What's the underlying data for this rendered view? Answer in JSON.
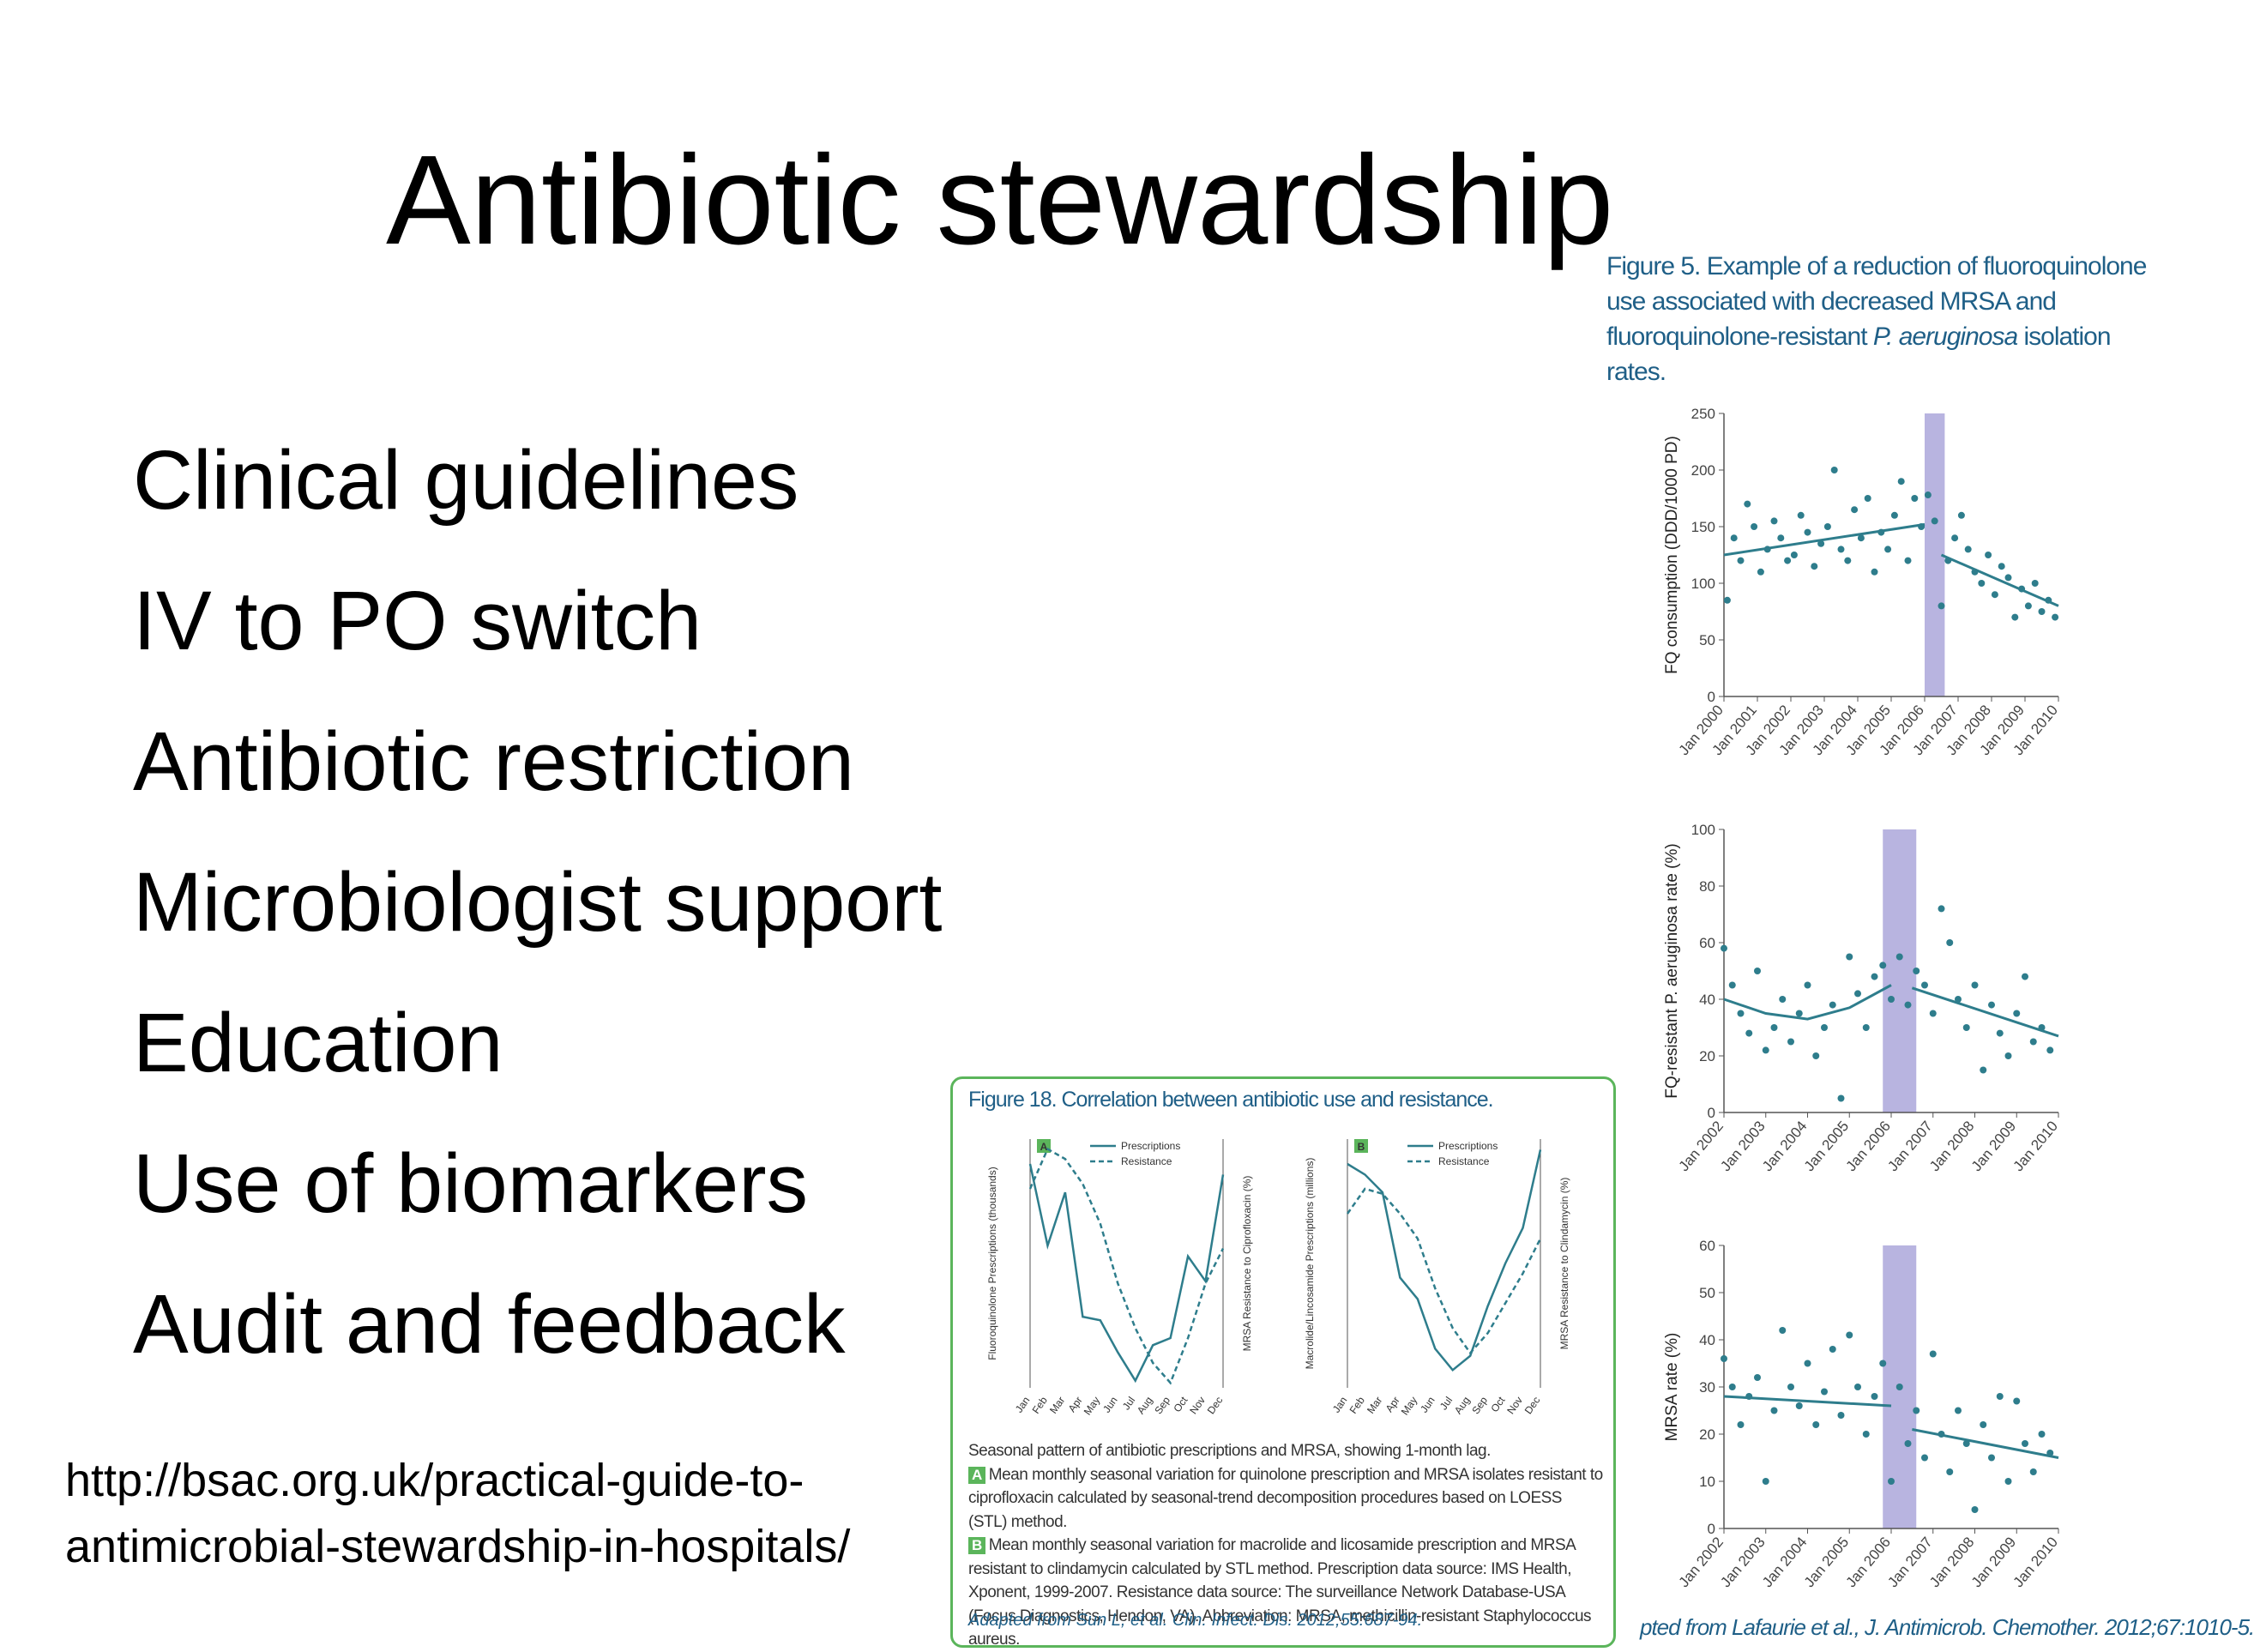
{
  "slide": {
    "title": "Antibiotic stewardship",
    "bullets": [
      "Clinical guidelines",
      "IV to PO switch",
      "Antibiotic restriction",
      "Microbiologist support",
      "Education",
      "Use of biomarkers",
      "Audit and feedback"
    ],
    "url": "http://bsac.org.uk/practical-guide-to-antimicrobial-stewardship-in-hospitals/"
  },
  "figure5": {
    "caption_part1": "Figure 5. Example of a reduction of fluoroquinolone use associated with decreased MRSA and fluoroquinolone-resistant ",
    "caption_italic": "P. aeruginosa",
    "caption_part2": " isolation rates.",
    "footer": "pted from Lafaurie et al., J. Antimicrob. Chemother. 2012;67:1010-5.",
    "colors": {
      "series": "#2e7d8c",
      "band": "#b8b4e0"
    }
  },
  "chart_data": [
    {
      "type": "scatter",
      "ylabel": "FQ consumption (DDD/1000 PD)",
      "ylim": [
        0,
        250
      ],
      "yticks": [
        0,
        50,
        100,
        150,
        200,
        250
      ],
      "xticks": [
        "Jan 2000",
        "Jan 2001",
        "Jan 2002",
        "Jan 2003",
        "Jan 2004",
        "Jan 2005",
        "Jan 2006",
        "Jan 2007",
        "Jan 2008",
        "Jan 2009",
        "Jan 2010"
      ],
      "band": [
        2006.0,
        2006.6
      ],
      "trend": [
        {
          "x": [
            2000,
            2006
          ],
          "y": [
            125,
            152
          ]
        },
        {
          "x": [
            2006.5,
            2010
          ],
          "y": [
            125,
            80
          ]
        }
      ],
      "points": [
        [
          2000.1,
          85
        ],
        [
          2000.3,
          140
        ],
        [
          2000.5,
          120
        ],
        [
          2000.7,
          170
        ],
        [
          2000.9,
          150
        ],
        [
          2001.1,
          110
        ],
        [
          2001.3,
          130
        ],
        [
          2001.5,
          155
        ],
        [
          2001.7,
          140
        ],
        [
          2001.9,
          120
        ],
        [
          2002.1,
          125
        ],
        [
          2002.3,
          160
        ],
        [
          2002.5,
          145
        ],
        [
          2002.7,
          115
        ],
        [
          2002.9,
          135
        ],
        [
          2003.1,
          150
        ],
        [
          2003.3,
          200
        ],
        [
          2003.5,
          130
        ],
        [
          2003.7,
          120
        ],
        [
          2003.9,
          165
        ],
        [
          2004.1,
          140
        ],
        [
          2004.3,
          175
        ],
        [
          2004.5,
          110
        ],
        [
          2004.7,
          145
        ],
        [
          2004.9,
          130
        ],
        [
          2005.1,
          160
        ],
        [
          2005.3,
          190
        ],
        [
          2005.5,
          120
        ],
        [
          2005.7,
          175
        ],
        [
          2005.9,
          150
        ],
        [
          2006.1,
          178
        ],
        [
          2006.3,
          155
        ],
        [
          2006.5,
          80
        ],
        [
          2006.7,
          120
        ],
        [
          2006.9,
          140
        ],
        [
          2007.1,
          160
        ],
        [
          2007.3,
          130
        ],
        [
          2007.5,
          110
        ],
        [
          2007.7,
          100
        ],
        [
          2007.9,
          125
        ],
        [
          2008.1,
          90
        ],
        [
          2008.3,
          115
        ],
        [
          2008.5,
          105
        ],
        [
          2008.7,
          70
        ],
        [
          2008.9,
          95
        ],
        [
          2009.1,
          80
        ],
        [
          2009.3,
          100
        ],
        [
          2009.5,
          75
        ],
        [
          2009.7,
          85
        ],
        [
          2009.9,
          70
        ]
      ]
    },
    {
      "type": "scatter",
      "ylabel": "FQ-resistant P. aeruginosa rate (%)",
      "ylim": [
        0,
        100
      ],
      "yticks": [
        0,
        20,
        40,
        60,
        80,
        100
      ],
      "xticks": [
        "Jan 2002",
        "Jan 2003",
        "Jan 2004",
        "Jan 2005",
        "Jan 2006",
        "Jan 2007",
        "Jan 2008",
        "Jan 2009",
        "Jan 2010"
      ],
      "band": [
        2005.8,
        2006.6
      ],
      "trend": [
        {
          "x": [
            2002,
            2003,
            2004,
            2005,
            2006
          ],
          "y": [
            40,
            35,
            33,
            37,
            45
          ]
        },
        {
          "x": [
            2006.5,
            2010
          ],
          "y": [
            44,
            27
          ]
        }
      ],
      "points": [
        [
          2002.0,
          58
        ],
        [
          2002.2,
          45
        ],
        [
          2002.4,
          35
        ],
        [
          2002.6,
          28
        ],
        [
          2002.8,
          50
        ],
        [
          2003.0,
          22
        ],
        [
          2003.2,
          30
        ],
        [
          2003.4,
          40
        ],
        [
          2003.6,
          25
        ],
        [
          2003.8,
          35
        ],
        [
          2004.0,
          45
        ],
        [
          2004.2,
          20
        ],
        [
          2004.4,
          30
        ],
        [
          2004.6,
          38
        ],
        [
          2004.8,
          5
        ],
        [
          2005.0,
          55
        ],
        [
          2005.2,
          42
        ],
        [
          2005.4,
          30
        ],
        [
          2005.6,
          48
        ],
        [
          2005.8,
          52
        ],
        [
          2006.0,
          40
        ],
        [
          2006.2,
          55
        ],
        [
          2006.4,
          38
        ],
        [
          2006.6,
          50
        ],
        [
          2006.8,
          45
        ],
        [
          2007.0,
          35
        ],
        [
          2007.2,
          72
        ],
        [
          2007.4,
          60
        ],
        [
          2007.6,
          40
        ],
        [
          2007.8,
          30
        ],
        [
          2008.0,
          45
        ],
        [
          2008.2,
          15
        ],
        [
          2008.4,
          38
        ],
        [
          2008.6,
          28
        ],
        [
          2008.8,
          20
        ],
        [
          2009.0,
          35
        ],
        [
          2009.2,
          48
        ],
        [
          2009.4,
          25
        ],
        [
          2009.6,
          30
        ],
        [
          2009.8,
          22
        ]
      ]
    },
    {
      "type": "scatter",
      "ylabel": "MRSA rate (%)",
      "ylim": [
        0,
        60
      ],
      "yticks": [
        0,
        10,
        20,
        30,
        40,
        50,
        60
      ],
      "xticks": [
        "Jan 2002",
        "Jan 2003",
        "Jan 2004",
        "Jan 2005",
        "Jan 2006",
        "Jan 2007",
        "Jan 2008",
        "Jan 2009",
        "Jan 2010"
      ],
      "band": [
        2005.8,
        2006.6
      ],
      "trend": [
        {
          "x": [
            2002,
            2006
          ],
          "y": [
            28,
            26
          ]
        },
        {
          "x": [
            2006.5,
            2010
          ],
          "y": [
            21,
            15
          ]
        }
      ],
      "points": [
        [
          2002.0,
          36
        ],
        [
          2002.2,
          30
        ],
        [
          2002.4,
          22
        ],
        [
          2002.6,
          28
        ],
        [
          2002.8,
          32
        ],
        [
          2003.0,
          10
        ],
        [
          2003.2,
          25
        ],
        [
          2003.4,
          42
        ],
        [
          2003.6,
          30
        ],
        [
          2003.8,
          26
        ],
        [
          2004.0,
          35
        ],
        [
          2004.2,
          22
        ],
        [
          2004.4,
          29
        ],
        [
          2004.6,
          38
        ],
        [
          2004.8,
          24
        ],
        [
          2005.0,
          41
        ],
        [
          2005.2,
          30
        ],
        [
          2005.4,
          20
        ],
        [
          2005.6,
          28
        ],
        [
          2005.8,
          35
        ],
        [
          2006.0,
          10
        ],
        [
          2006.2,
          30
        ],
        [
          2006.4,
          18
        ],
        [
          2006.6,
          25
        ],
        [
          2006.8,
          15
        ],
        [
          2007.0,
          37
        ],
        [
          2007.2,
          20
        ],
        [
          2007.4,
          12
        ],
        [
          2007.6,
          25
        ],
        [
          2007.8,
          18
        ],
        [
          2008.0,
          4
        ],
        [
          2008.2,
          22
        ],
        [
          2008.4,
          15
        ],
        [
          2008.6,
          28
        ],
        [
          2008.8,
          10
        ],
        [
          2009.0,
          27
        ],
        [
          2009.2,
          18
        ],
        [
          2009.4,
          12
        ],
        [
          2009.6,
          20
        ],
        [
          2009.8,
          16
        ]
      ]
    },
    {
      "type": "line",
      "panel": "A",
      "categories": [
        "Jan",
        "Feb",
        "Mar",
        "Apr",
        "May",
        "Jun",
        "Jul",
        "Aug",
        "Sep",
        "Oct",
        "Nov",
        "Dec"
      ],
      "ylabel": "Fluoroquinolone Prescriptions (thousands)",
      "y2label": "MRSA Resistance to Ciprofloxacin (%)",
      "series": [
        {
          "name": "Prescriptions",
          "values": [
            330,
            100,
            250,
            -100,
            -110,
            -200,
            -280,
            -180,
            -160,
            70,
            0,
            300
          ]
        },
        {
          "name": "Resistance",
          "values": [
            1.5,
            2.3,
            2.1,
            1.6,
            0.8,
            -0.4,
            -1.3,
            -2.0,
            -2.4,
            -1.5,
            -0.4,
            0.3
          ]
        }
      ],
      "ylim": [
        -300,
        400
      ],
      "y2lim": [
        -2.5,
        2.5
      ]
    },
    {
      "type": "line",
      "panel": "B",
      "categories": [
        "Jan",
        "Feb",
        "Mar",
        "Apr",
        "May",
        "Jun",
        "Jul",
        "Aug",
        "Sep",
        "Oct",
        "Nov",
        "Dec"
      ],
      "ylabel": "Macrolide/Lincosamide Prescriptions (millions)",
      "y2label": "MRSA Resistance to Clindamycin (%)",
      "series": [
        {
          "name": "Prescriptions",
          "values": [
            1.4,
            1.25,
            1.0,
            -0.2,
            -0.5,
            -1.2,
            -1.5,
            -1.3,
            -0.6,
            0.0,
            0.5,
            1.6
          ]
        },
        {
          "name": "Resistance",
          "values": [
            1.0,
            1.5,
            1.4,
            1.0,
            0.5,
            -0.5,
            -1.3,
            -1.8,
            -1.4,
            -0.8,
            -0.2,
            0.5
          ]
        }
      ],
      "ylim": [
        -1.75,
        1.75
      ],
      "y2lim": [
        -2.5,
        2.5
      ]
    }
  ],
  "figure18": {
    "caption": "Figure 18. Correlation between antibiotic use and resistance.",
    "legend_prescriptions": "Prescriptions",
    "legend_resistance": "Resistance",
    "label_a": "A",
    "label_b": "B",
    "body_intro": "Seasonal pattern of antibiotic prescriptions and MRSA, showing 1-month lag.",
    "body_a": "Mean monthly seasonal variation for quinolone prescription and MRSA isolates resistant to ciprofloxacin calculated by seasonal-trend decomposition procedures based on LOESS (STL) method.",
    "body_b": "Mean monthly seasonal variation for macrolide and licosamide prescription and MRSA resistant to clindamycin calculated by STL method. Prescription data source: IMS Health, Xponent, 1999-2007. Resistance data source: The surveillance Network Database-USA (Focus Diagnostics, Hendon, VA). Abbreviation: MRSA, methicillin-resistant Staphylococcus aureus.",
    "source": "Adapted from Sun L, et al. Clin. Infect. Dis. 2012;55:687-94.",
    "colors": {
      "line": "#2e7d8c",
      "border": "#5bb55b",
      "caption": "#1f5f87"
    }
  }
}
